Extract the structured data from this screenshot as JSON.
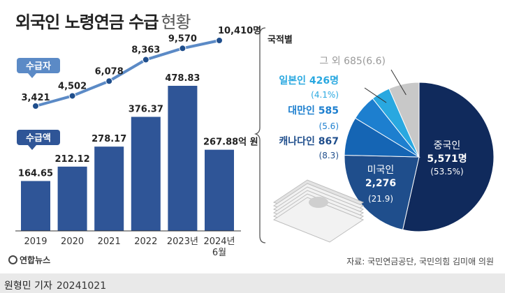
{
  "title": {
    "main": "외국인 노령연금 수급",
    "sub": "현황"
  },
  "chart_data": [
    {
      "type": "line",
      "name": "수급자",
      "categories": [
        "2019",
        "2020",
        "2021",
        "2022",
        "2023년",
        "2024년 6월"
      ],
      "values": [
        3421,
        4502,
        6078,
        8363,
        9570,
        10410
      ],
      "labels": [
        "3,421",
        "4,502",
        "6,078",
        "8,363",
        "9,570",
        "10,410명"
      ],
      "legend_label": "수급자",
      "color": "#5b8ac6"
    },
    {
      "type": "bar",
      "name": "수급액",
      "categories": [
        "2019",
        "2020",
        "2021",
        "2022",
        "2023년",
        "2024년 6월"
      ],
      "values": [
        164.65,
        212.12,
        278.17,
        376.37,
        478.83,
        267.88
      ],
      "labels": [
        "164.65",
        "212.12",
        "278.17",
        "376.37",
        "478.83",
        "267.88억 원"
      ],
      "legend_label": "수급액",
      "unit": "억 원",
      "color": "#2f5597"
    },
    {
      "type": "pie",
      "title": "국적별",
      "slices": [
        {
          "name": "중국인",
          "value": 5571,
          "value_label": "5,571명",
          "share": 53.5,
          "share_label": "(53.5%)",
          "color": "#102a5c"
        },
        {
          "name": "미국인",
          "value": 2276,
          "value_label": "2,276",
          "share": 21.9,
          "share_label": "(21.9)",
          "color": "#1f4e8c"
        },
        {
          "name": "캐나다인",
          "value": 867,
          "value_label": "867",
          "share": 8.3,
          "share_label": "(8.3)",
          "color": "#1565b4"
        },
        {
          "name": "대만인",
          "value": 585,
          "value_label": "585",
          "share": 5.6,
          "share_label": "(5.6)",
          "color": "#1d7fcf"
        },
        {
          "name": "일본인",
          "value": 426,
          "value_label": "426명",
          "share": 4.1,
          "share_label": "(4.1%)",
          "color": "#29a8e0"
        },
        {
          "name": "그 외",
          "value": 685,
          "value_label": "685",
          "share": 6.6,
          "share_label": "(6.6)",
          "color": "#c8c8c8"
        }
      ]
    }
  ],
  "axis": {
    "categories": [
      "2019",
      "2020",
      "2021",
      "2022",
      "2023년",
      "2024년",
      "6월"
    ]
  },
  "source": "자료: 국민연금공단, 국민의힘 김미애 의원",
  "logo": "연합뉴스",
  "credit": {
    "author": "원형민 기자",
    "date": "20241021"
  }
}
